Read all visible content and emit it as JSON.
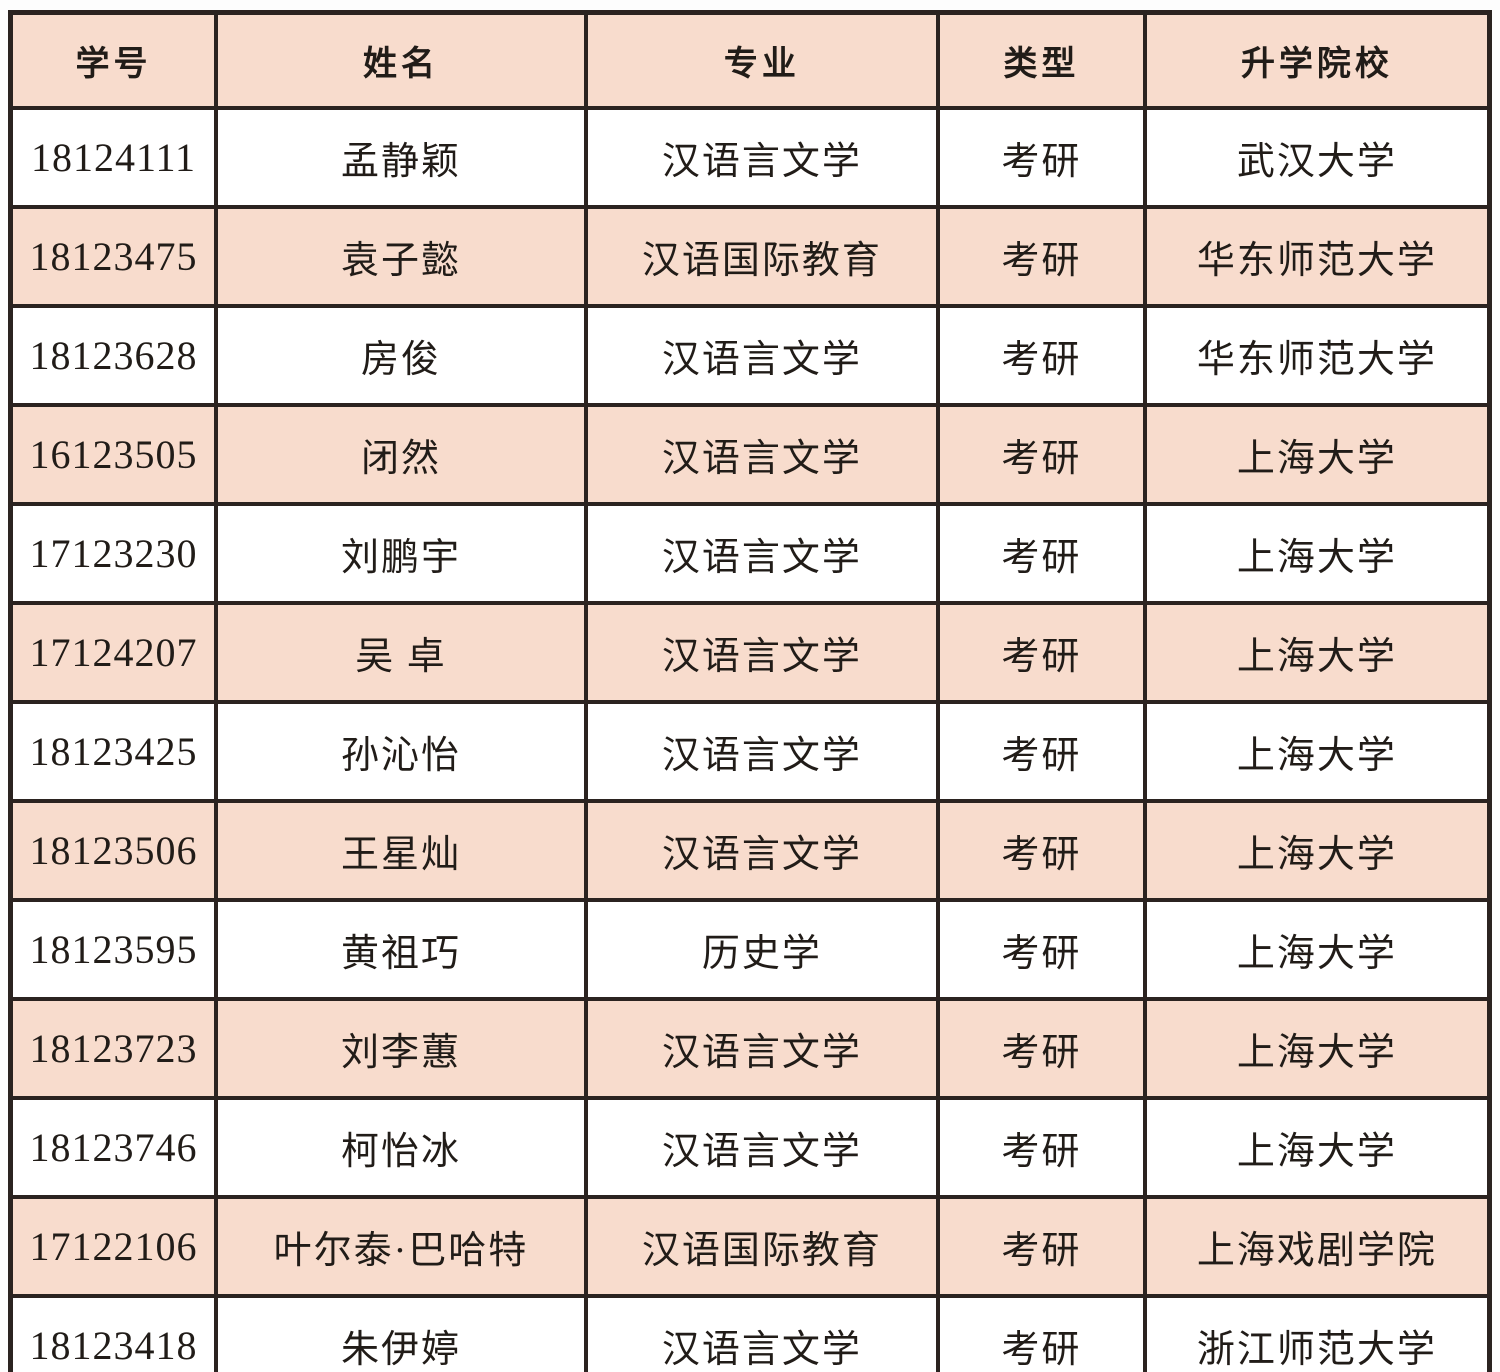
{
  "colors": {
    "header_fill": "#f8dccd",
    "alt_row_fill": "#f8dccd",
    "border": "#2b2320",
    "text": "#211c18",
    "background": "#ffffff"
  },
  "table": {
    "columns": [
      {
        "key": "student_id",
        "label": "学号"
      },
      {
        "key": "name",
        "label": "姓名"
      },
      {
        "key": "major",
        "label": "专业"
      },
      {
        "key": "type",
        "label": "类型"
      },
      {
        "key": "school",
        "label": "升学院校"
      }
    ],
    "rows": [
      {
        "student_id": "18124111",
        "name": "孟静颖",
        "major": "汉语言文学",
        "type": "考研",
        "school": "武汉大学"
      },
      {
        "student_id": "18123475",
        "name": "袁子懿",
        "major": "汉语国际教育",
        "type": "考研",
        "school": "华东师范大学"
      },
      {
        "student_id": "18123628",
        "name": "房俊",
        "major": "汉语言文学",
        "type": "考研",
        "school": "华东师范大学"
      },
      {
        "student_id": "16123505",
        "name": "闭然",
        "major": "汉语言文学",
        "type": "考研",
        "school": "上海大学"
      },
      {
        "student_id": "17123230",
        "name": "刘鹏宇",
        "major": "汉语言文学",
        "type": "考研",
        "school": "上海大学"
      },
      {
        "student_id": "17124207",
        "name": "吴 卓",
        "major": "汉语言文学",
        "type": "考研",
        "school": "上海大学"
      },
      {
        "student_id": "18123425",
        "name": "孙沁怡",
        "major": "汉语言文学",
        "type": "考研",
        "school": "上海大学"
      },
      {
        "student_id": "18123506",
        "name": "王星灿",
        "major": "汉语言文学",
        "type": "考研",
        "school": "上海大学"
      },
      {
        "student_id": "18123595",
        "name": "黄祖巧",
        "major": "历史学",
        "type": "考研",
        "school": "上海大学"
      },
      {
        "student_id": "18123723",
        "name": "刘李蕙",
        "major": "汉语言文学",
        "type": "考研",
        "school": "上海大学"
      },
      {
        "student_id": "18123746",
        "name": "柯怡冰",
        "major": "汉语言文学",
        "type": "考研",
        "school": "上海大学"
      },
      {
        "student_id": "17122106",
        "name": "叶尔泰·巴哈特",
        "major": "汉语国际教育",
        "type": "考研",
        "school": "上海戏剧学院"
      },
      {
        "student_id": "18123418",
        "name": "朱伊婷",
        "major": "汉语言文学",
        "type": "考研",
        "school": "浙江师范大学"
      }
    ]
  }
}
